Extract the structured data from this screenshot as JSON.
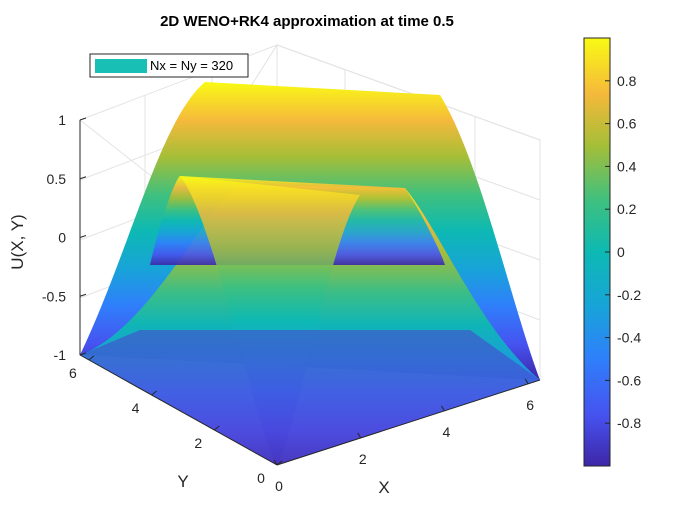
{
  "chart_data": {
    "type": "surface",
    "title": "2D WENO+RK4 approximation at time 0.5",
    "xlabel": "X",
    "ylabel": "Y",
    "zlabel": "U(X, Y)",
    "legend": {
      "entries": [
        "Nx = Ny = 320"
      ],
      "location": "top-left"
    },
    "colormap": "parula",
    "xlim": [
      0,
      6.283
    ],
    "ylim": [
      0,
      6.283
    ],
    "zlim": [
      -1,
      1
    ],
    "x_ticks": [
      "0",
      "2",
      "4",
      "6"
    ],
    "y_ticks": [
      "0",
      "2",
      "4",
      "6"
    ],
    "z_ticks": [
      "-1",
      "-0.5",
      "0",
      "0.5",
      "1"
    ],
    "colorbar": {
      "limits": [
        -1,
        1
      ],
      "ticks": [
        "-0.8",
        "-0.6",
        "-0.4",
        "-0.2",
        "0",
        "0.2",
        "0.4",
        "0.6",
        "0.8"
      ]
    },
    "grid": true,
    "surface": {
      "function": "U = -cos(X) * cos(Y) pattern: peaks along X edges rising to ~1, dips to -1",
      "min": -1,
      "max": 1
    }
  }
}
